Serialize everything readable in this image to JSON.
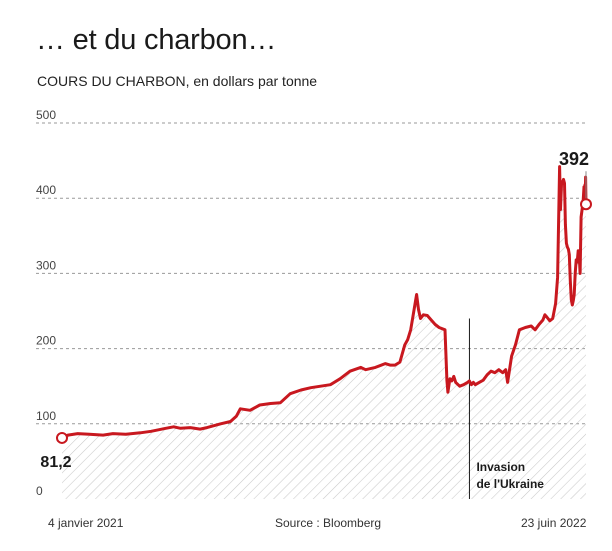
{
  "chart_data": {
    "type": "area",
    "title": "… et du charbon…",
    "subtitle": "COURS DU CHARBON, en dollars par tonne",
    "yticks": [
      0,
      100,
      200,
      300,
      400,
      500
    ],
    "ylim": [
      0,
      500
    ],
    "xlim": [
      "2021-01-04",
      "2022-06-23"
    ],
    "x_start_label": "4 janvier 2021",
    "x_end_label": "23 juin 2022",
    "source": "Source : Bloomberg",
    "start_value_label": "81,2",
    "end_value_label": "392",
    "event": {
      "date": "2022-02-24",
      "line1": "Invasion",
      "line2": "de l'Ukraine"
    },
    "series": [
      {
        "points": [
          [
            "2021-01-04",
            81.2
          ],
          [
            "2021-01-10",
            85
          ],
          [
            "2021-01-20",
            87
          ],
          [
            "2021-02-01",
            86
          ],
          [
            "2021-02-15",
            85
          ],
          [
            "2021-02-25",
            87
          ],
          [
            "2021-03-10",
            86
          ],
          [
            "2021-03-25",
            88
          ],
          [
            "2021-04-05",
            90
          ],
          [
            "2021-04-20",
            94
          ],
          [
            "2021-04-28",
            96
          ],
          [
            "2021-05-05",
            94
          ],
          [
            "2021-05-15",
            95
          ],
          [
            "2021-05-25",
            93
          ],
          [
            "2021-06-01",
            95
          ],
          [
            "2021-06-15",
            100
          ],
          [
            "2021-06-25",
            103
          ],
          [
            "2021-07-01",
            110
          ],
          [
            "2021-07-05",
            120
          ],
          [
            "2021-07-15",
            118
          ],
          [
            "2021-07-25",
            125
          ],
          [
            "2021-08-05",
            127
          ],
          [
            "2021-08-15",
            128
          ],
          [
            "2021-08-25",
            140
          ],
          [
            "2021-09-05",
            145
          ],
          [
            "2021-09-15",
            148
          ],
          [
            "2021-09-25",
            150
          ],
          [
            "2021-10-05",
            152
          ],
          [
            "2021-10-15",
            160
          ],
          [
            "2021-10-25",
            170
          ],
          [
            "2021-11-05",
            175
          ],
          [
            "2021-11-10",
            172
          ],
          [
            "2021-11-20",
            175
          ],
          [
            "2021-11-30",
            180
          ],
          [
            "2021-12-05",
            178
          ],
          [
            "2021-12-10",
            178
          ],
          [
            "2021-12-15",
            182
          ],
          [
            "2021-12-20",
            205
          ],
          [
            "2021-12-23",
            212
          ],
          [
            "2021-12-26",
            225
          ],
          [
            "2021-12-28",
            240
          ],
          [
            "2022-01-01",
            272
          ],
          [
            "2022-01-03",
            252
          ],
          [
            "2022-01-05",
            240
          ],
          [
            "2022-01-08",
            245
          ],
          [
            "2022-01-12",
            244
          ],
          [
            "2022-01-16",
            238
          ],
          [
            "2022-01-20",
            232
          ],
          [
            "2022-01-24",
            228
          ],
          [
            "2022-01-30",
            225
          ],
          [
            "2022-02-01",
            158
          ],
          [
            "2022-02-02",
            142
          ],
          [
            "2022-02-04",
            160
          ],
          [
            "2022-02-06",
            157
          ],
          [
            "2022-02-08",
            163
          ],
          [
            "2022-02-10",
            155
          ],
          [
            "2022-02-14",
            150
          ],
          [
            "2022-02-18",
            152
          ],
          [
            "2022-02-22",
            155
          ],
          [
            "2022-02-24",
            157
          ],
          [
            "2022-02-26",
            152
          ],
          [
            "2022-02-28",
            155
          ],
          [
            "2022-03-02",
            152
          ],
          [
            "2022-03-06",
            155
          ],
          [
            "2022-03-10",
            158
          ],
          [
            "2022-03-14",
            165
          ],
          [
            "2022-03-18",
            170
          ],
          [
            "2022-03-22",
            168
          ],
          [
            "2022-03-26",
            172
          ],
          [
            "2022-03-30",
            168
          ],
          [
            "2022-04-02",
            172
          ],
          [
            "2022-04-04",
            155
          ],
          [
            "2022-04-08",
            190
          ],
          [
            "2022-04-12",
            205
          ],
          [
            "2022-04-16",
            225
          ],
          [
            "2022-04-22",
            228
          ],
          [
            "2022-04-28",
            230
          ],
          [
            "2022-05-02",
            225
          ],
          [
            "2022-05-06",
            232
          ],
          [
            "2022-05-10",
            238
          ],
          [
            "2022-05-12",
            245
          ],
          [
            "2022-05-14",
            242
          ],
          [
            "2022-05-17",
            237
          ],
          [
            "2022-05-20",
            240
          ],
          [
            "2022-05-23",
            260
          ],
          [
            "2022-05-25",
            295
          ],
          [
            "2022-05-27",
            442
          ],
          [
            "2022-05-28",
            385
          ],
          [
            "2022-05-29",
            418
          ],
          [
            "2022-05-31",
            425
          ],
          [
            "2022-06-01",
            420
          ],
          [
            "2022-06-02",
            365
          ],
          [
            "2022-06-03",
            340
          ],
          [
            "2022-06-04",
            335
          ],
          [
            "2022-06-05",
            332
          ],
          [
            "2022-06-06",
            325
          ],
          [
            "2022-06-07",
            290
          ],
          [
            "2022-06-08",
            265
          ],
          [
            "2022-06-09",
            258
          ],
          [
            "2022-06-10",
            264
          ],
          [
            "2022-06-11",
            272
          ],
          [
            "2022-06-12",
            300
          ],
          [
            "2022-06-13",
            318
          ],
          [
            "2022-06-14",
            315
          ],
          [
            "2022-06-15",
            330
          ],
          [
            "2022-06-16",
            327
          ],
          [
            "2022-06-17",
            300
          ],
          [
            "2022-06-18",
            375
          ],
          [
            "2022-06-19",
            385
          ],
          [
            "2022-06-20",
            395
          ],
          [
            "2022-06-21",
            415
          ],
          [
            "2022-06-21T12:00",
            408
          ],
          [
            "2022-06-22",
            418
          ],
          [
            "2022-06-22T08:00",
            405
          ],
          [
            "2022-06-22T14:00",
            428
          ],
          [
            "2022-06-22T18:00",
            410
          ],
          [
            "2022-06-23",
            392
          ]
        ]
      }
    ]
  }
}
